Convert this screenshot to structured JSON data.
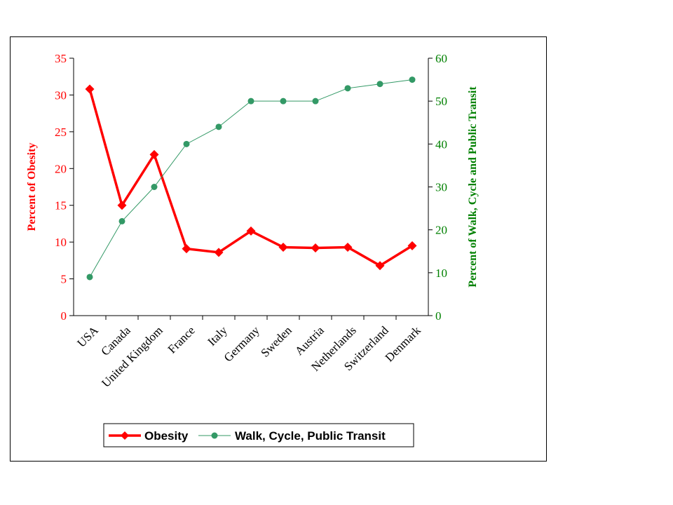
{
  "chart_data": {
    "type": "line",
    "categories": [
      "USA",
      "Canada",
      "United Kingdom",
      "France",
      "Italy",
      "Germany",
      "Sweden",
      "Austria",
      "Netherlands",
      "Switzerland",
      "Denmark"
    ],
    "series": [
      {
        "name": "Obesity",
        "axis": "left",
        "color": "#ff0000",
        "marker": "diamond",
        "values": [
          30.8,
          15.0,
          21.9,
          9.1,
          8.6,
          11.5,
          9.3,
          9.2,
          9.3,
          6.8,
          9.5
        ]
      },
      {
        "name": "Walk, Cycle, Public Transit",
        "axis": "right",
        "color": "#339966",
        "marker": "circle",
        "values": [
          9,
          22,
          30,
          40,
          44,
          50,
          50,
          50,
          53,
          54,
          55
        ]
      }
    ],
    "ylabel": "Percent of Obesity",
    "y2label": "Percent of Walk, Cycle and Public Transit",
    "ylim": [
      0,
      35
    ],
    "y2lim": [
      0,
      60
    ],
    "yticks": [
      "0",
      "5",
      "10",
      "15",
      "20",
      "25",
      "30",
      "35"
    ],
    "y2ticks": [
      "0",
      "10",
      "20",
      "30",
      "40",
      "50",
      "60"
    ],
    "grid": false,
    "legend_position": "bottom"
  }
}
